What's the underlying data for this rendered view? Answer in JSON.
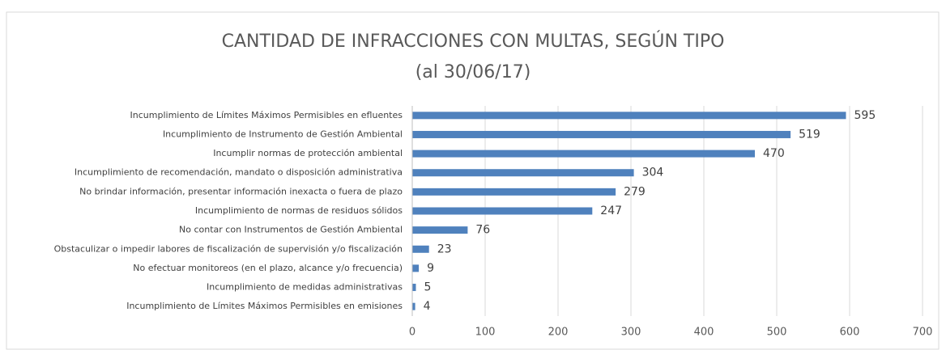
{
  "chart_data": {
    "type": "bar",
    "orientation": "horizontal",
    "title": "CANTIDAD DE INFRACCIONES CON MULTAS, SEGÚN TIPO",
    "subtitle": "(al 30/06/17)",
    "categories": [
      "Incumplimiento de Límites Máximos Permisibles en efluentes",
      "Incumplimiento de Instrumento de Gestión Ambiental",
      "Incumplir normas de protección ambiental",
      "Incumplimiento de recomendación, mandato o disposición administrativa",
      "No brindar información, presentar información inexacta o fuera de plazo",
      "Incumplimiento de normas de residuos sólidos",
      "No contar con Instrumentos de Gestión Ambiental",
      "Obstaculizar o impedir labores de fiscalización de supervisión y/o fiscalización",
      "No efectuar monitoreos (en el plazo, alcance y/o frecuencia)",
      "Incumplimiento de medidas administrativas",
      "Incumplimiento de Límites Máximos Permisibles en emisiones"
    ],
    "values": [
      595,
      519,
      470,
      304,
      279,
      247,
      76,
      23,
      9,
      5,
      4
    ],
    "color": "#4f81bd",
    "xlim": [
      0,
      700
    ],
    "xticks": [
      0,
      100,
      200,
      300,
      400,
      500,
      600,
      700
    ],
    "grid": true
  }
}
